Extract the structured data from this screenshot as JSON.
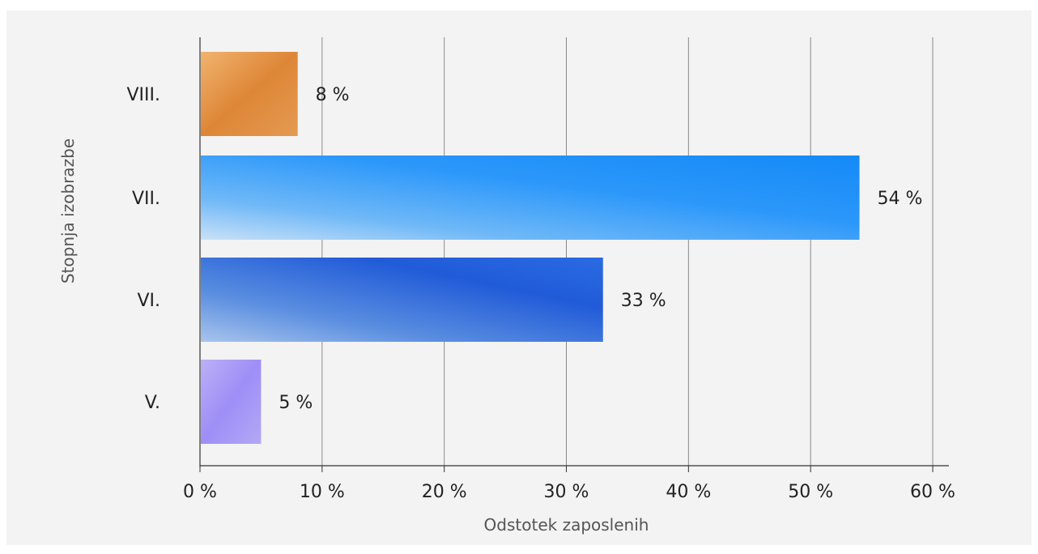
{
  "chart_data": {
    "type": "bar",
    "orientation": "horizontal",
    "categories": [
      "VIII.",
      "VII.",
      "VI.",
      "V."
    ],
    "values": [
      8,
      54,
      33,
      5
    ],
    "data_labels": [
      "8 %",
      "54 %",
      "33 %",
      "5 %"
    ],
    "colors": [
      "#e08b3a",
      "#1f8cf5",
      "#2b63d6",
      "#a596f5"
    ],
    "xlabel": "Odstotek zaposlenih",
    "ylabel": "Stopnja izobrazbe",
    "xlim": [
      0,
      60
    ],
    "xticks": [
      0,
      10,
      20,
      30,
      40,
      50,
      60
    ],
    "xtick_labels": [
      "0 %",
      "10 %",
      "20 %",
      "30 %",
      "40 %",
      "50 %",
      "60 %"
    ],
    "grid": "vertical",
    "legend": "none"
  }
}
